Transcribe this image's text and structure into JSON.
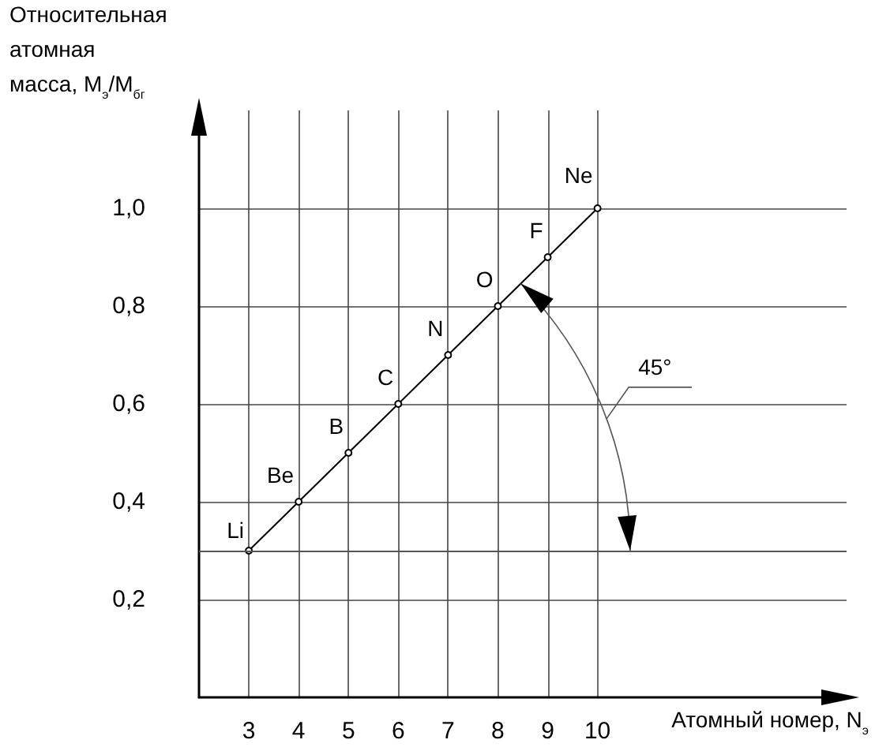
{
  "chart_data": {
    "type": "line",
    "xlabel": "Атомный номер, N$_{э}$",
    "ylabel": "Относительная\nатомная\nмасса, M$_{э}$/M$_{бг}$",
    "x": [
      3,
      4,
      5,
      6,
      7,
      8,
      9,
      10
    ],
    "series": [
      {
        "color": "#000000",
        "values": [
          0.3,
          0.4,
          0.5,
          0.6,
          0.7,
          0.8,
          0.9,
          1.0
        ]
      }
    ],
    "xlim": [
      2,
      15
    ],
    "xticks": [
      3,
      4,
      5,
      6,
      7,
      8,
      9,
      10
    ],
    "ylim": [
      0,
      1.2
    ],
    "yticks": [
      {
        "value": 0.2,
        "label": "0,2"
      },
      {
        "value": 0.4,
        "label": "0,4"
      },
      {
        "value": 0.6,
        "label": "0,6"
      },
      {
        "value": 0.8,
        "label": "0,8"
      },
      {
        "value": 1.0,
        "label": "1,0"
      }
    ],
    "grid": true,
    "marker": "circle",
    "line_style": "solid",
    "ref_lines": [
      {
        "axis": "y",
        "value": 0.3,
        "color": "#555555"
      }
    ],
    "annotations": [
      {
        "text": "Li",
        "x": 3,
        "y": 0.3
      },
      {
        "text": "Be",
        "x": 4,
        "y": 0.4
      },
      {
        "text": "B",
        "x": 5,
        "y": 0.5
      },
      {
        "text": "C",
        "x": 6,
        "y": 0.6
      },
      {
        "text": "N",
        "x": 7,
        "y": 0.7
      },
      {
        "text": "O",
        "x": 8,
        "y": 0.8
      },
      {
        "text": "F",
        "x": 9,
        "y": 0.9
      },
      {
        "text": "Ne",
        "x": 10,
        "y": 1.0
      },
      "45°"
    ]
  }
}
